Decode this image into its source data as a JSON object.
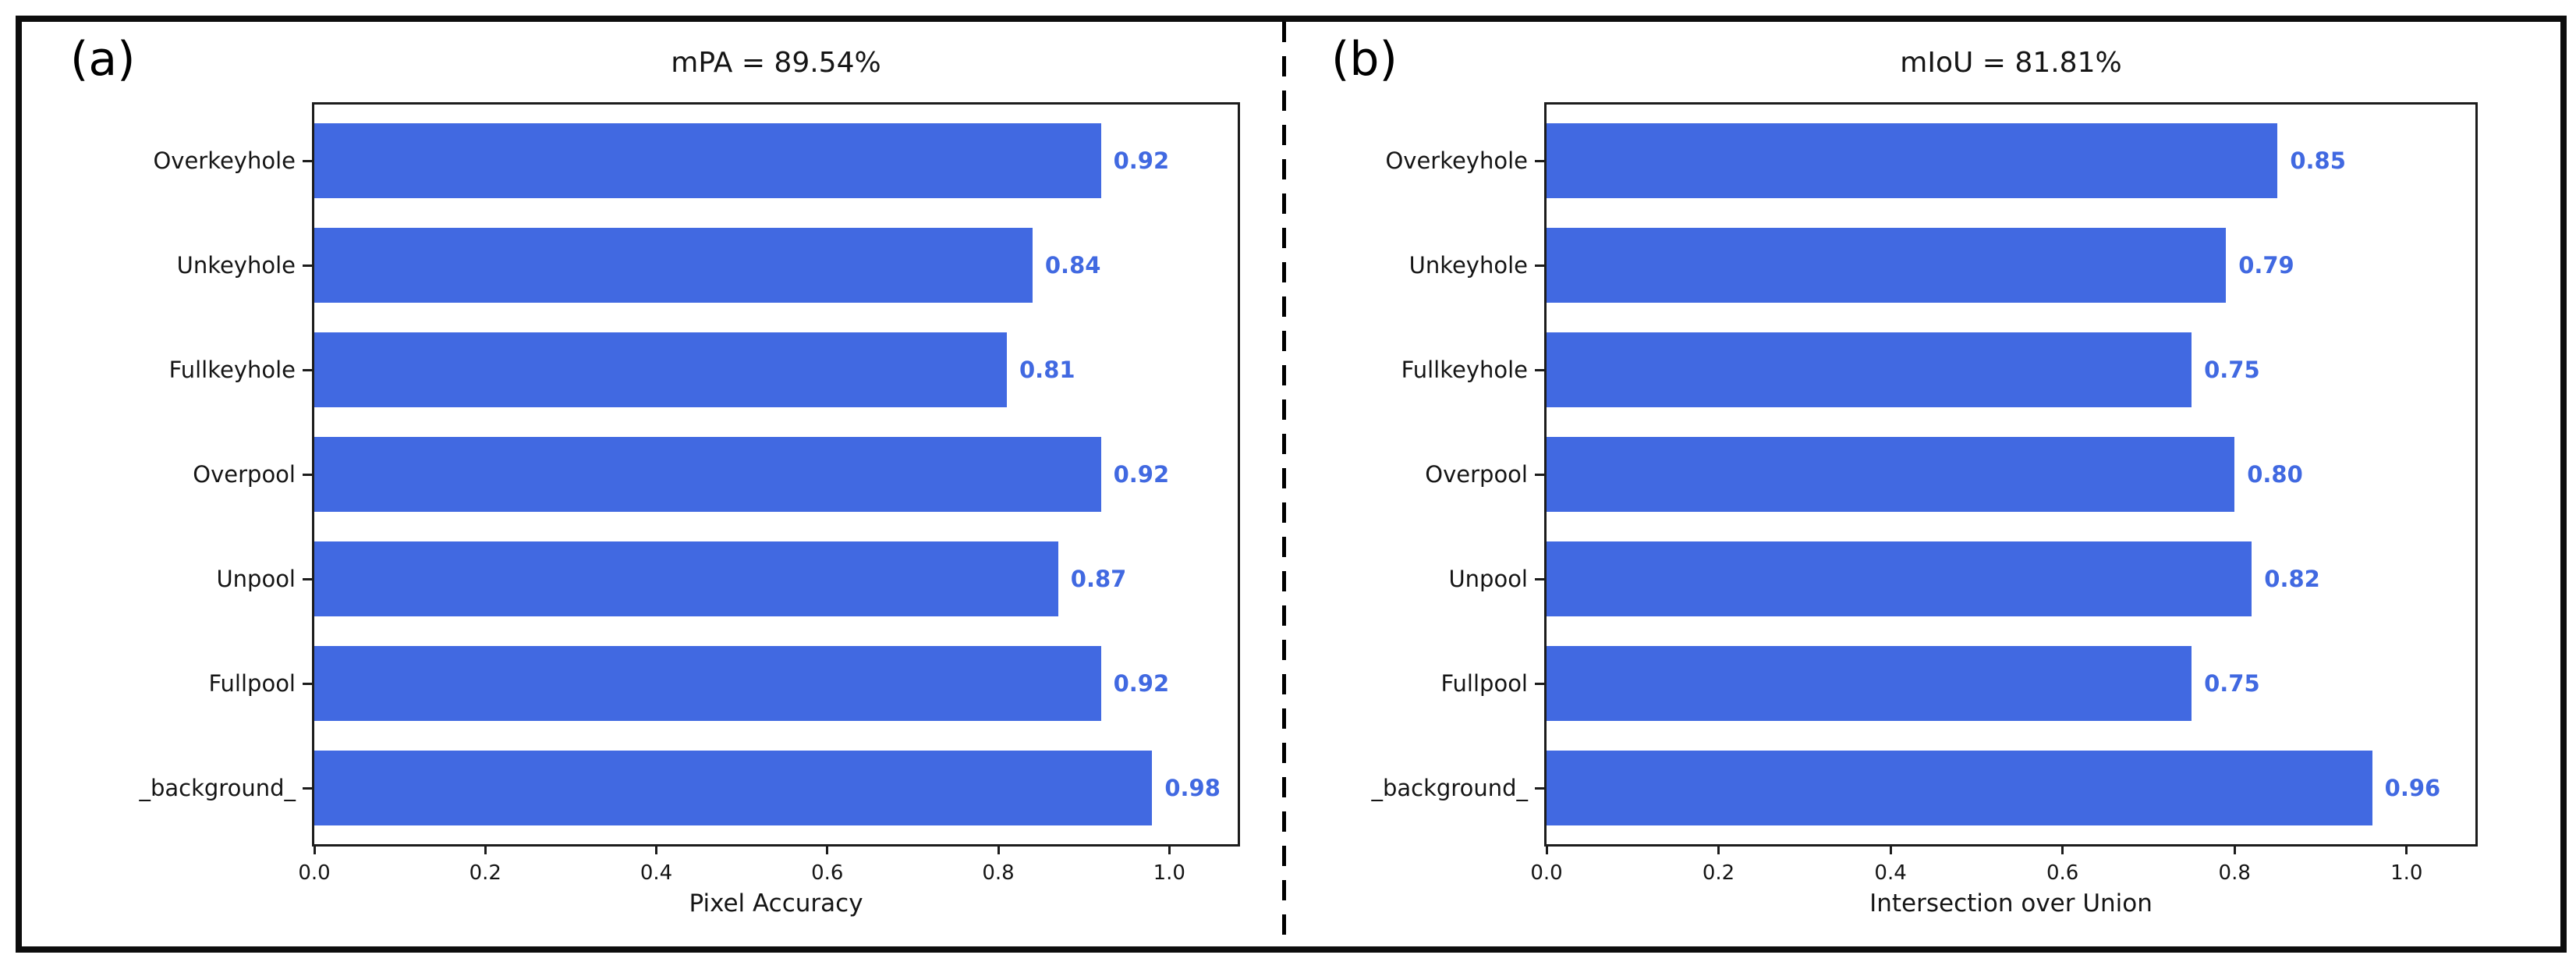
{
  "figure": {
    "panel_a_label": "(a)",
    "panel_b_label": "(b)"
  },
  "chart_data": [
    {
      "type": "bar",
      "orientation": "horizontal",
      "title": "mPA = 89.54%",
      "categories": [
        "Overkeyhole",
        "Unkeyhole",
        "Fullkeyhole",
        "Overpool",
        "Unpool",
        "Fullpool",
        "_background_"
      ],
      "values": [
        0.92,
        0.84,
        0.81,
        0.92,
        0.87,
        0.92,
        0.98
      ],
      "value_labels": [
        "0.92",
        "0.84",
        "0.81",
        "0.92",
        "0.87",
        "0.92",
        "0.98"
      ],
      "xlabel": "Pixel Accuracy",
      "ylabel": "",
      "xlim": [
        0,
        1.08
      ],
      "xticks": [
        "0.0",
        "0.2",
        "0.4",
        "0.6",
        "0.8",
        "1.0"
      ],
      "grid": false,
      "legend": null,
      "bar_color": "#4169e1",
      "value_label_color": "#4169e1"
    },
    {
      "type": "bar",
      "orientation": "horizontal",
      "title": "mIoU = 81.81%",
      "categories": [
        "Overkeyhole",
        "Unkeyhole",
        "Fullkeyhole",
        "Overpool",
        "Unpool",
        "Fullpool",
        "_background_"
      ],
      "values": [
        0.85,
        0.79,
        0.75,
        0.8,
        0.82,
        0.75,
        0.96
      ],
      "value_labels": [
        "0.85",
        "0.79",
        "0.75",
        "0.80",
        "0.82",
        "0.75",
        "0.96"
      ],
      "xlabel": "Intersection over Union",
      "ylabel": "",
      "xlim": [
        0,
        1.08
      ],
      "xticks": [
        "0.0",
        "0.2",
        "0.4",
        "0.6",
        "0.8",
        "1.0"
      ],
      "grid": false,
      "legend": null,
      "bar_color": "#4169e1",
      "value_label_color": "#4169e1"
    }
  ]
}
